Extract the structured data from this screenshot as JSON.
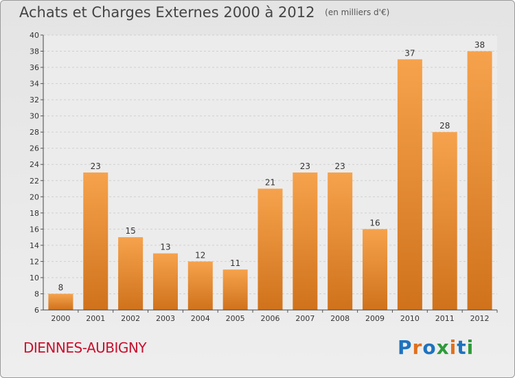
{
  "header": {
    "title": "Achats et Charges Externes 2000 à 2012",
    "unit": "(en milliers d'€)"
  },
  "footer": {
    "town": "DIENNES-AUBIGNY",
    "logo": "Proxiti"
  },
  "colors": {
    "bar_light": "#f6a24c",
    "bar_dark": "#d0721c",
    "town": "#c8102e"
  },
  "chart_data": {
    "type": "bar",
    "title": "Achats et Charges Externes 2000 à 2012",
    "subtitle": "(en milliers d'€)",
    "xlabel": "",
    "ylabel": "",
    "categories": [
      "2000",
      "2001",
      "2002",
      "2003",
      "2004",
      "2005",
      "2006",
      "2007",
      "2008",
      "2009",
      "2010",
      "2011",
      "2012"
    ],
    "values": [
      8,
      23,
      15,
      13,
      12,
      11,
      21,
      23,
      23,
      16,
      37,
      28,
      38
    ],
    "ylim": [
      6,
      40
    ],
    "yticks": [
      6,
      8,
      10,
      12,
      14,
      16,
      18,
      20,
      22,
      24,
      26,
      28,
      30,
      32,
      34,
      36,
      38,
      40
    ],
    "grid": true,
    "data_labels": true
  }
}
